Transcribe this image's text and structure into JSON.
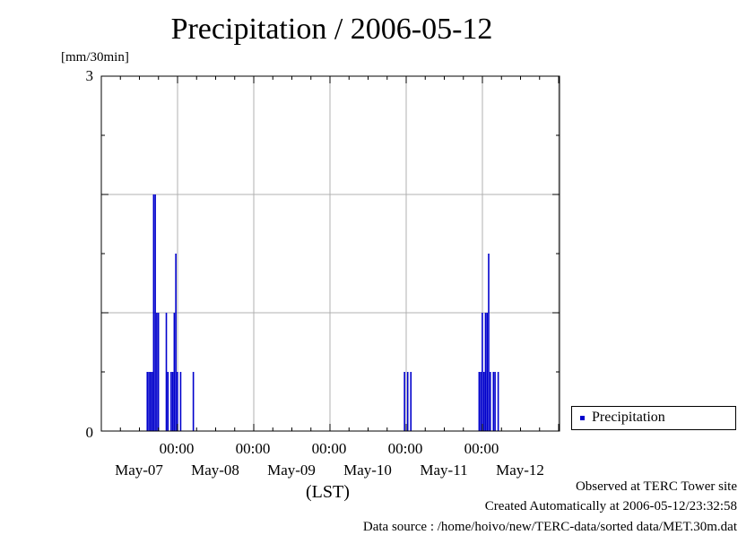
{
  "chart_data": {
    "type": "bar",
    "title": "Precipitation / 2006-05-12",
    "ylabel": "[mm/30min]",
    "xlabel": "(LST)",
    "ylim": [
      0,
      3
    ],
    "yticks": [
      "0",
      "3"
    ],
    "x_time_labels": [
      "00:00",
      "00:00",
      "00:00",
      "00:00",
      "00:00"
    ],
    "x_date_labels": [
      "May-07",
      "May-08",
      "May-09",
      "May-10",
      "May-11",
      "May-12"
    ],
    "grid": true,
    "legend_position": "right",
    "bar_color": "#0000cc",
    "series": [
      {
        "name": "Precipitation",
        "points": [
          {
            "x": "2006-05-06 14:30",
            "y": 0.5
          },
          {
            "x": "2006-05-06 15:00",
            "y": 0.5
          },
          {
            "x": "2006-05-06 15:30",
            "y": 0.5
          },
          {
            "x": "2006-05-06 16:00",
            "y": 0.5
          },
          {
            "x": "2006-05-06 16:30",
            "y": 2.0
          },
          {
            "x": "2006-05-06 17:00",
            "y": 2.0
          },
          {
            "x": "2006-05-06 17:30",
            "y": 1.0
          },
          {
            "x": "2006-05-06 18:00",
            "y": 1.0
          },
          {
            "x": "2006-05-06 20:30",
            "y": 1.0
          },
          {
            "x": "2006-05-06 21:00",
            "y": 0.5
          },
          {
            "x": "2006-05-06 22:00",
            "y": 0.5
          },
          {
            "x": "2006-05-06 22:30",
            "y": 0.5
          },
          {
            "x": "2006-05-06 23:00",
            "y": 1.0
          },
          {
            "x": "2006-05-06 23:30",
            "y": 1.5
          },
          {
            "x": "2006-05-07 00:00",
            "y": 0.5
          },
          {
            "x": "2006-05-07 01:00",
            "y": 0.5
          },
          {
            "x": "2006-05-07 05:00",
            "y": 0.5
          },
          {
            "x": "2006-05-09 23:30",
            "y": 0.5
          },
          {
            "x": "2006-05-10 00:30",
            "y": 0.5
          },
          {
            "x": "2006-05-10 01:30",
            "y": 0.5
          },
          {
            "x": "2006-05-10 23:00",
            "y": 0.5
          },
          {
            "x": "2006-05-10 23:30",
            "y": 0.5
          },
          {
            "x": "2006-05-11 00:00",
            "y": 1.0
          },
          {
            "x": "2006-05-11 00:30",
            "y": 0.5
          },
          {
            "x": "2006-05-11 01:00",
            "y": 1.0
          },
          {
            "x": "2006-05-11 01:30",
            "y": 1.0
          },
          {
            "x": "2006-05-11 02:00",
            "y": 1.5
          },
          {
            "x": "2006-05-11 02:30",
            "y": 0.5
          },
          {
            "x": "2006-05-11 03:30",
            "y": 0.5
          },
          {
            "x": "2006-05-11 04:00",
            "y": 0.5
          },
          {
            "x": "2006-05-11 05:00",
            "y": 0.5
          }
        ]
      }
    ]
  },
  "footer": {
    "observed": "Observed at TERC Tower site",
    "created": "Created Automatically at 2006-05-12/23:32:58",
    "source": "Data source : /home/hoivo/new/TERC-data/sorted data/MET.30m.dat"
  }
}
